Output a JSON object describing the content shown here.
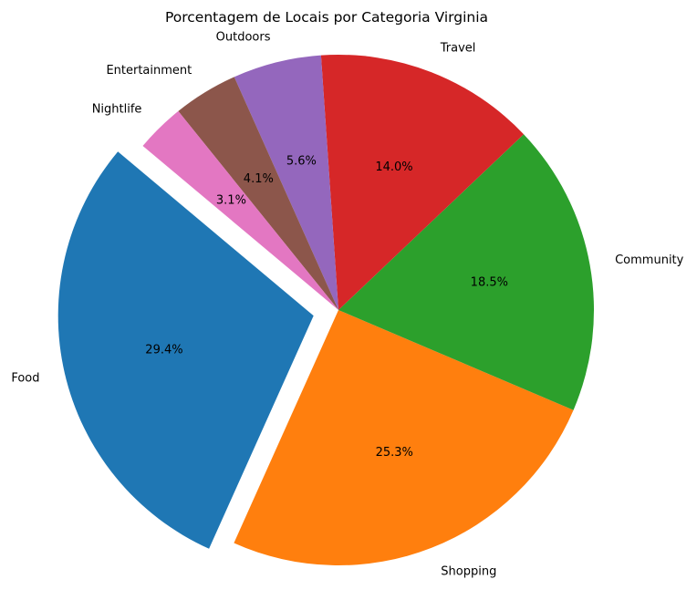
{
  "chart_data": {
    "type": "pie",
    "title": "Porcentagem de Locais por Categoria Virginia",
    "slices": [
      {
        "label": "Food",
        "percent": 29.4,
        "percent_label": "29.4%",
        "color": "#1f77b4",
        "exploded": true
      },
      {
        "label": "Shopping",
        "percent": 25.3,
        "percent_label": "25.3%",
        "color": "#ff7f0e",
        "exploded": false
      },
      {
        "label": "Community",
        "percent": 18.5,
        "percent_label": "18.5%",
        "color": "#2ca02c",
        "exploded": false
      },
      {
        "label": "Travel",
        "percent": 14.0,
        "percent_label": "14.0%",
        "color": "#d62728",
        "exploded": false
      },
      {
        "label": "Outdoors",
        "percent": 5.6,
        "percent_label": "5.6%",
        "color": "#9467bd",
        "exploded": false
      },
      {
        "label": "Entertainment",
        "percent": 4.1,
        "percent_label": "4.1%",
        "color": "#8c564b",
        "exploded": false
      },
      {
        "label": "Nightlife",
        "percent": 3.1,
        "percent_label": "3.1%",
        "color": "#e377c2",
        "exploded": false
      }
    ],
    "start_angle_deg": 140,
    "direction": "counterclockwise"
  }
}
